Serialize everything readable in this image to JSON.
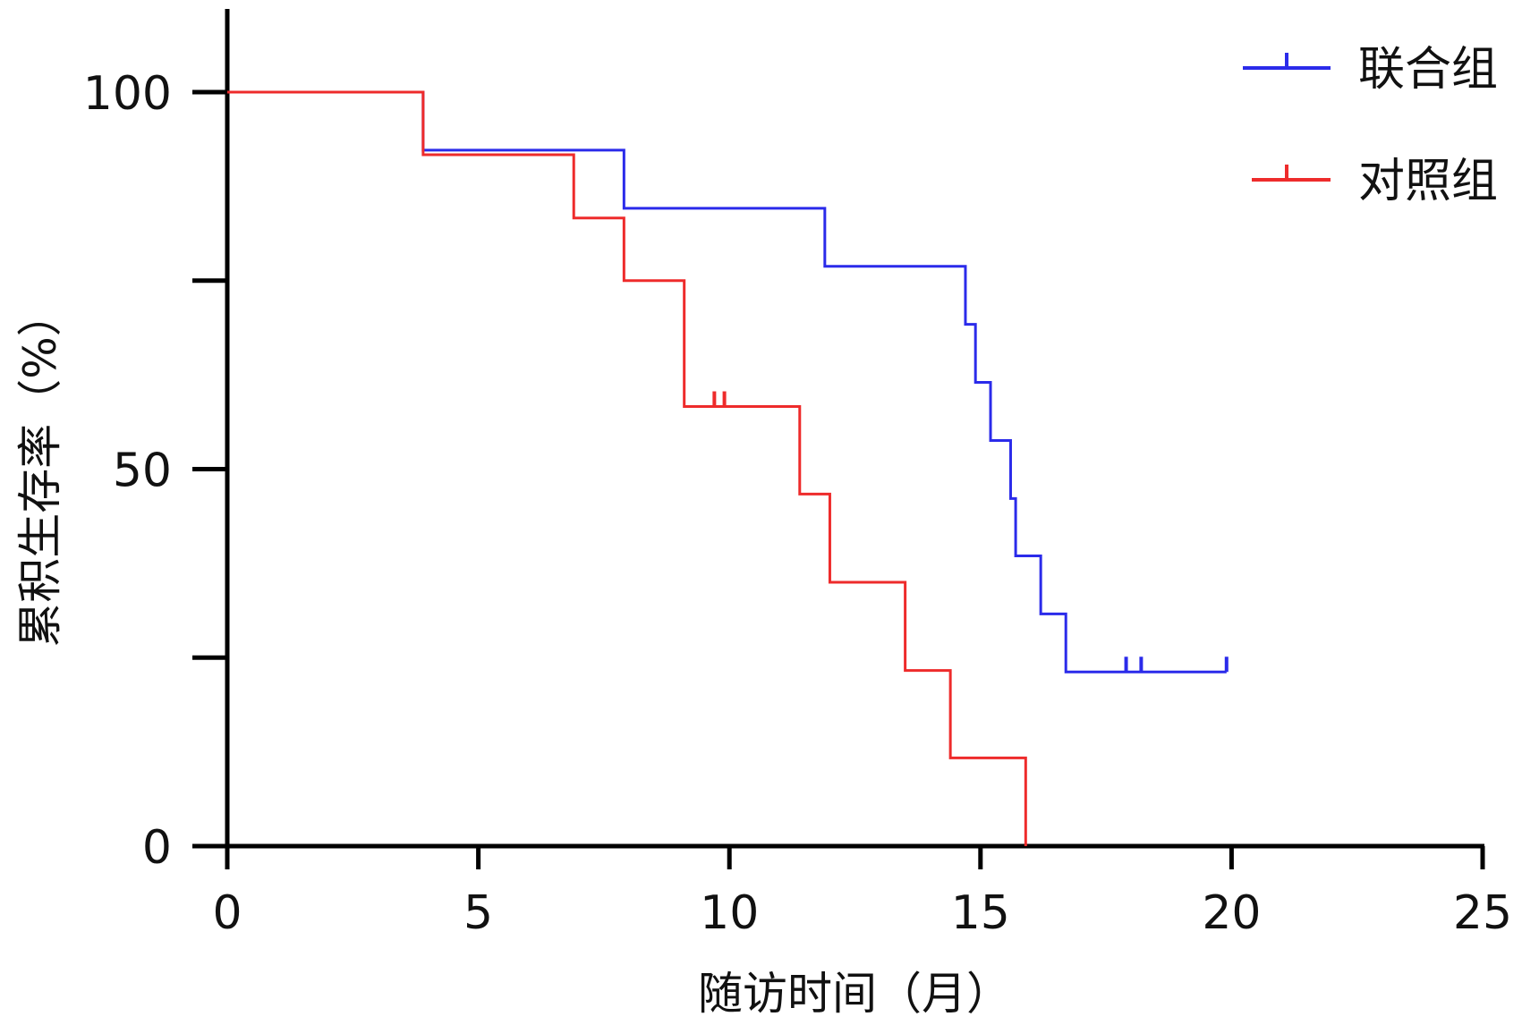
{
  "chart_data": {
    "type": "line",
    "subtype": "kaplan-meier step",
    "title": "",
    "xlabel": "随访时间（月）",
    "ylabel": "累积生存率（%）",
    "xlim": [
      0,
      25
    ],
    "ylim": [
      0,
      100
    ],
    "x_ticks": [
      "0",
      "5",
      "10",
      "15",
      "20",
      "25"
    ],
    "y_ticks": [
      "0",
      "50",
      "100"
    ],
    "grid": false,
    "legend_position": "top-right",
    "series": [
      {
        "name": "联合组",
        "color": "#2b2bea",
        "steps": [
          [
            0,
            100
          ],
          [
            3.9,
            92.3
          ],
          [
            7.9,
            84.6
          ],
          [
            11.9,
            76.9
          ],
          [
            14.7,
            69.2
          ],
          [
            14.9,
            61.5
          ],
          [
            15.2,
            53.8
          ],
          [
            15.6,
            46.1
          ],
          [
            15.7,
            38.5
          ],
          [
            16.2,
            30.8
          ],
          [
            16.7,
            23.1
          ],
          [
            19.9,
            23.1
          ]
        ],
        "censored": [
          [
            17.9,
            23.1
          ],
          [
            18.2,
            23.1
          ],
          [
            19.9,
            23.1
          ]
        ]
      },
      {
        "name": "对照组",
        "color": "#ee2b2b",
        "steps": [
          [
            0,
            100
          ],
          [
            3.9,
            91.7
          ],
          [
            6.9,
            83.3
          ],
          [
            7.9,
            75.0
          ],
          [
            9.1,
            58.3
          ],
          [
            11.4,
            46.7
          ],
          [
            12.0,
            35.0
          ],
          [
            13.5,
            23.3
          ],
          [
            14.4,
            11.7
          ],
          [
            15.9,
            0
          ],
          [
            15.9,
            0
          ]
        ],
        "censored": [
          [
            9.7,
            58.3
          ],
          [
            9.9,
            58.3
          ]
        ]
      }
    ]
  }
}
